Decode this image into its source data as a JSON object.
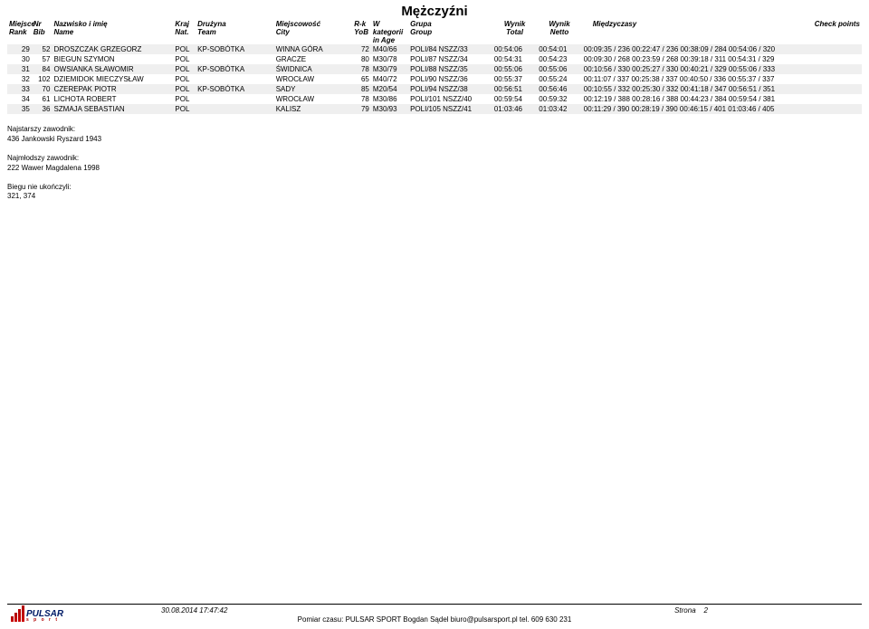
{
  "title": "Mężczyźni",
  "columns": {
    "rank": {
      "l1": "Miejsce",
      "l2": "Rank"
    },
    "bib": {
      "l1": "Nr",
      "l2": "Bib"
    },
    "name": {
      "l1": "Nazwisko i imię",
      "l2": "Name"
    },
    "nat": {
      "l1": "Kraj",
      "l2": "Nat."
    },
    "team": {
      "l1": "Drużyna",
      "l2": "Team"
    },
    "city": {
      "l1": "Miejscowość",
      "l2": "City"
    },
    "yob": {
      "l1": "R-k",
      "l2": "YoB"
    },
    "age": {
      "l1": "W kategorii",
      "l2": "in Age"
    },
    "group": {
      "l1": "Grupa",
      "l2": "Group"
    },
    "total": {
      "l1": "Wynik",
      "l2": "Total"
    },
    "netto": {
      "l1": "Wynik",
      "l2": "Netto"
    },
    "checks": {
      "l1": "Międzyczasy",
      "l2": ""
    },
    "points": {
      "l1": "Check points",
      "l2": ""
    }
  },
  "rows": [
    {
      "rank": "29",
      "bib": "52",
      "name": "DROSZCZAK GRZEGORZ",
      "nat": "POL",
      "team": "KP-SOBÓTKA",
      "city": "WINNA GÓRA",
      "yob": "72",
      "age": "M40/66",
      "group": "POLI/84 NSZZ/33",
      "total": "00:54:06",
      "netto": "00:54:01",
      "checks": "00:09:35 / 236  00:22:47 / 236  00:38:09 / 284  00:54:06 / 320"
    },
    {
      "rank": "30",
      "bib": "57",
      "name": "BIEGUN SZYMON",
      "nat": "POL",
      "team": "",
      "city": "GRACZE",
      "yob": "80",
      "age": "M30/78",
      "group": "POLI/87 NSZZ/34",
      "total": "00:54:31",
      "netto": "00:54:23",
      "checks": "00:09:30 / 268  00:23:59 / 268  00:39:18 / 311  00:54:31 / 329"
    },
    {
      "rank": "31",
      "bib": "84",
      "name": "OWSIANKA SŁAWOMIR",
      "nat": "POL",
      "team": "KP-SOBÓTKA",
      "city": "ŚWIDNICA",
      "yob": "78",
      "age": "M30/79",
      "group": "POLI/88 NSZZ/35",
      "total": "00:55:06",
      "netto": "00:55:06",
      "checks": "00:10:56 / 330  00:25:27 / 330  00:40:21 / 329  00:55:06 / 333"
    },
    {
      "rank": "32",
      "bib": "102",
      "name": "DZIEMIDOK MIECZYSŁAW",
      "nat": "POL",
      "team": "",
      "city": "WROCŁAW",
      "yob": "65",
      "age": "M40/72",
      "group": "POLI/90 NSZZ/36",
      "total": "00:55:37",
      "netto": "00:55:24",
      "checks": "00:11:07 / 337  00:25:38 / 337  00:40:50 / 336  00:55:37 / 337"
    },
    {
      "rank": "33",
      "bib": "70",
      "name": "CZEREPAK PIOTR",
      "nat": "POL",
      "team": "KP-SOBÓTKA",
      "city": "SADY",
      "yob": "85",
      "age": "M20/54",
      "group": "POLI/94 NSZZ/38",
      "total": "00:56:51",
      "netto": "00:56:46",
      "checks": "00:10:55 / 332  00:25:30 / 332  00:41:18 / 347  00:56:51 / 351"
    },
    {
      "rank": "34",
      "bib": "61",
      "name": "LICHOTA ROBERT",
      "nat": "POL",
      "team": "",
      "city": "WROCŁAW",
      "yob": "78",
      "age": "M30/86",
      "group": "POLI/101 NSZZ/40",
      "total": "00:59:54",
      "netto": "00:59:32",
      "checks": "00:12:19 / 388  00:28:16 / 388  00:44:23 / 384  00:59:54 / 381"
    },
    {
      "rank": "35",
      "bib": "36",
      "name": "SZMAJA SEBASTIAN",
      "nat": "POL",
      "team": "",
      "city": "KALISZ",
      "yob": "79",
      "age": "M30/93",
      "group": "POLI/105 NSZZ/41",
      "total": "01:03:46",
      "netto": "01:03:42",
      "checks": "00:11:29 / 390  00:28:19 / 390  00:46:15 / 401  01:03:46 / 405"
    }
  ],
  "notes": {
    "oldest_label": "Najstarszy zawodnik:",
    "oldest_value": "436 Jankowski Ryszard 1943",
    "youngest_label": "Najmłodszy zawodnik:",
    "youngest_value": "222 Wawer Magdalena 1998",
    "dnf_label": "Biegu nie ukończyli:",
    "dnf_value": "321, 374"
  },
  "footer": {
    "timestamp": "30.08.2014 17:47:42",
    "page_label": "Strona",
    "page_num": "2",
    "credit": "Pomiar czasu: PULSAR SPORT Bogdan Sądel biuro@pulsarsport.pl tel. 609 630 231"
  },
  "logo": {
    "brand": "PULSAR",
    "sub": "s  p  o  r  t"
  },
  "style": {
    "row_even_bg": "#efefef",
    "row_odd_bg": "#ffffff"
  }
}
